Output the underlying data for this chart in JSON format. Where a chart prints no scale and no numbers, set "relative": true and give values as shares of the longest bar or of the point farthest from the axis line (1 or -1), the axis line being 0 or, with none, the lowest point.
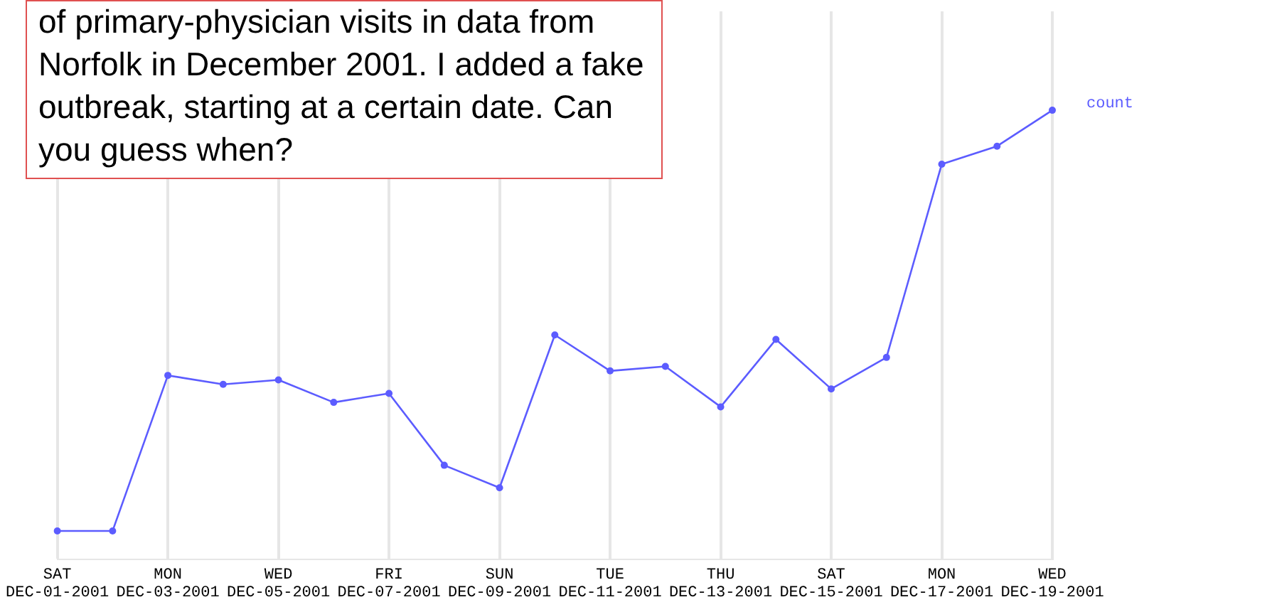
{
  "chart_data": {
    "type": "line",
    "relative": true,
    "categories": [
      "SAT\nDEC-01-2001",
      null,
      "MON\nDEC-03-2001",
      null,
      "WED\nDEC-05-2001",
      null,
      "FRI\nDEC-07-2001",
      null,
      "SUN\nDEC-09-2001",
      null,
      "TUE\nDEC-11-2001",
      null,
      "THU\nDEC-13-2001",
      null,
      "SAT\nDEC-15-2001",
      null,
      "MON\nDEC-17-2001",
      null,
      "WED\nDEC-19-2001"
    ],
    "series": [
      {
        "name": "count",
        "color": "#5c5cff",
        "values": [
          0.064,
          0.064,
          0.41,
          0.39,
          0.4,
          0.35,
          0.37,
          0.21,
          0.16,
          0.5,
          0.42,
          0.43,
          0.34,
          0.49,
          0.38,
          0.45,
          0.88,
          0.92,
          1
        ]
      }
    ],
    "annotations": [
      "of primary-physician visits in data from Norfolk in December 2001. I added a fake outbreak, starting at a certain date. Can you guess when?"
    ],
    "grid": "x",
    "legend": "top right",
    "marker": "circle",
    "line_style": "solid"
  }
}
